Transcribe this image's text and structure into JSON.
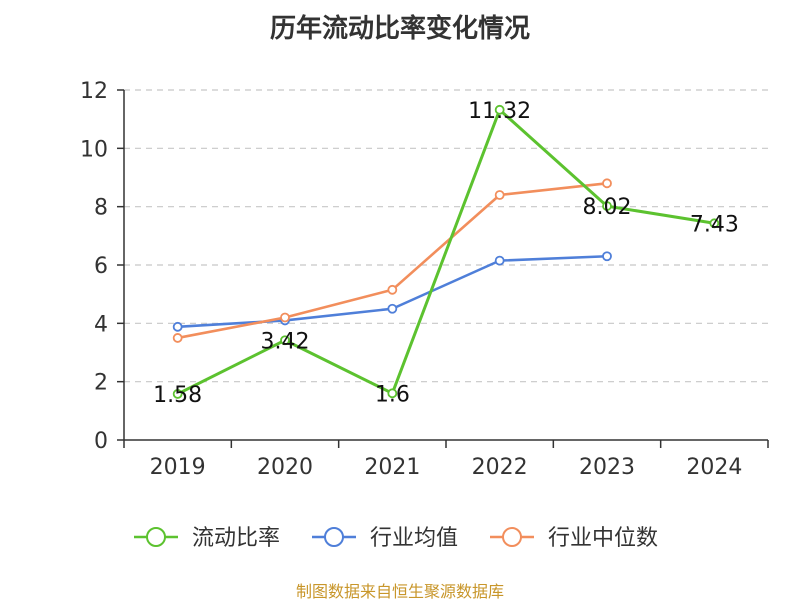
{
  "title": "历年流动比率变化情况",
  "source": "制图数据来自恒生聚源数据库",
  "chart_data": {
    "type": "line",
    "title": "历年流动比率变化情况",
    "categories": [
      "2019",
      "2020",
      "2021",
      "2022",
      "2023",
      "2024"
    ],
    "ylim": [
      0,
      12
    ],
    "yticks": [
      0,
      2,
      4,
      6,
      8,
      10,
      12
    ],
    "grid": true,
    "legend_position": "bottom",
    "series": [
      {
        "name": "流动比率",
        "color": "#5cc22f",
        "values": [
          1.58,
          3.42,
          1.6,
          11.32,
          8.02,
          7.43
        ],
        "labels": [
          "1.58",
          "3.42",
          "1.6",
          "11.32",
          "8.02",
          "7.43"
        ]
      },
      {
        "name": "行业均值",
        "color": "#4f7fd9",
        "values": [
          3.88,
          4.1,
          4.5,
          6.15,
          6.3,
          null
        ]
      },
      {
        "name": "行业中位数",
        "color": "#f28e5c",
        "values": [
          3.5,
          4.2,
          5.15,
          8.4,
          8.8,
          null
        ]
      }
    ]
  }
}
